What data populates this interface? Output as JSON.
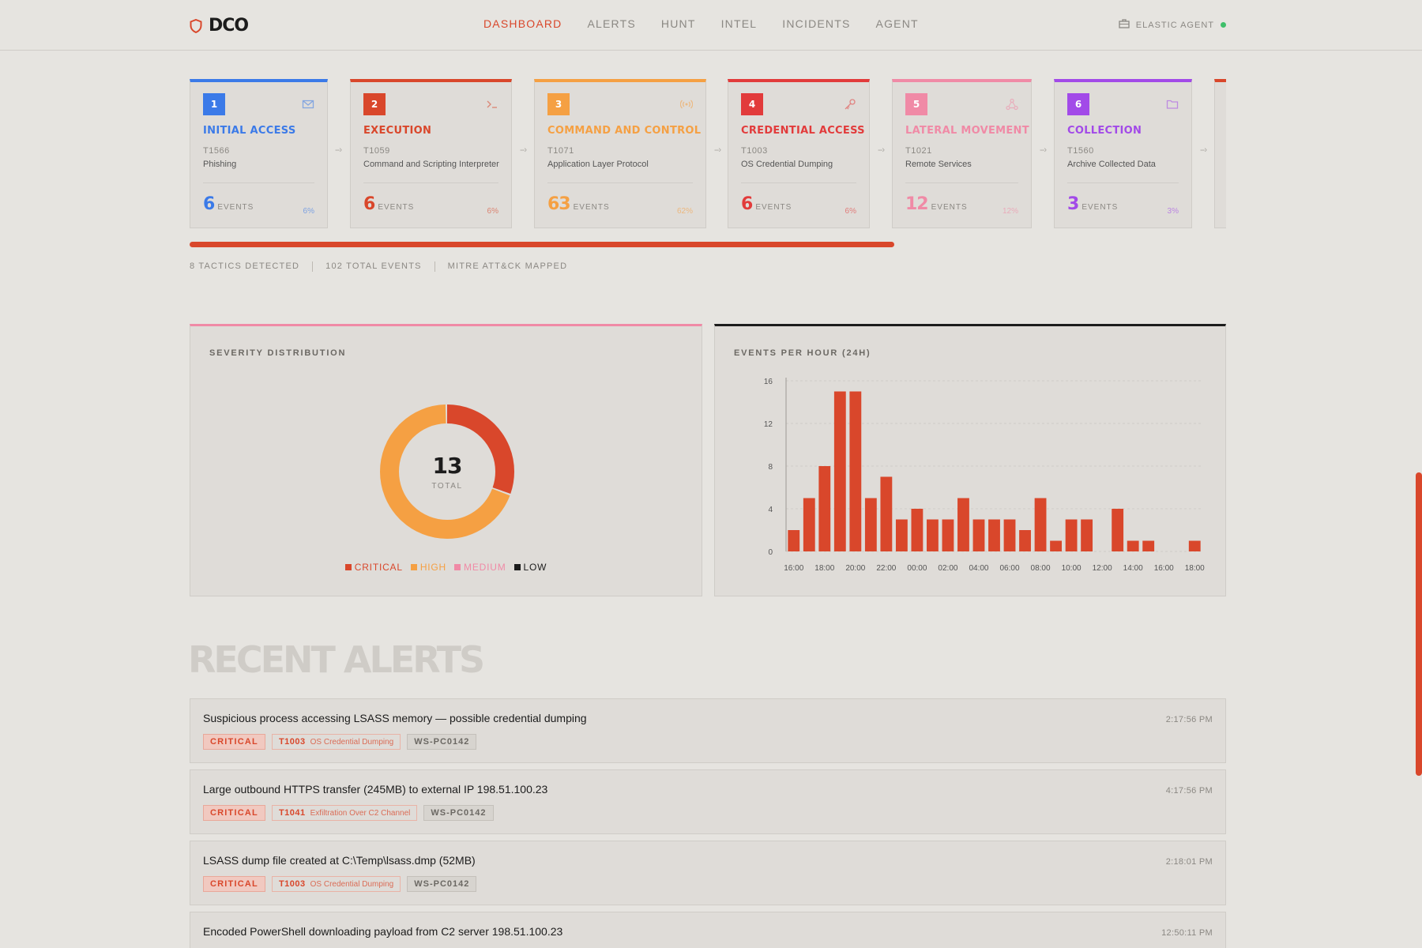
{
  "header": {
    "logo": "DCO",
    "nav": [
      {
        "label": "DASHBOARD",
        "active": true
      },
      {
        "label": "ALERTS",
        "active": false
      },
      {
        "label": "HUNT",
        "active": false
      },
      {
        "label": "INTEL",
        "active": false
      },
      {
        "label": "INCIDENTS",
        "active": false
      },
      {
        "label": "AGENT",
        "active": false
      }
    ],
    "agent_label": "ELASTIC AGENT",
    "agent_status_color": "#3fbf6a"
  },
  "colors": {
    "accent": "#d9472b",
    "critical": "#d9472b",
    "high": "#f5a043",
    "medium": "#f08aa6",
    "low": "#1c1c1c"
  },
  "tactics": [
    {
      "num": "1",
      "name": "INITIAL ACCESS",
      "tid": "T1566",
      "technique": "Phishing",
      "count": "6",
      "events_label": "EVENTS",
      "pct": "6%",
      "color": "#3b7ae8",
      "icon": "mail-icon"
    },
    {
      "num": "2",
      "name": "EXECUTION",
      "tid": "T1059",
      "technique": "Command and Scripting Interpreter",
      "count": "6",
      "events_label": "EVENTS",
      "pct": "6%",
      "color": "#d9472b",
      "icon": "terminal-icon"
    },
    {
      "num": "3",
      "name": "COMMAND AND CONTROL",
      "tid": "T1071",
      "technique": "Application Layer Protocol",
      "count": "63",
      "events_label": "EVENTS",
      "pct": "62%",
      "color": "#f5a043",
      "icon": "broadcast-icon"
    },
    {
      "num": "4",
      "name": "CREDENTIAL ACCESS",
      "tid": "T1003",
      "technique": "OS Credential Dumping",
      "count": "6",
      "events_label": "EVENTS",
      "pct": "6%",
      "color": "#e23b3b",
      "icon": "key-icon"
    },
    {
      "num": "5",
      "name": "LATERAL MOVEMENT",
      "tid": "T1021",
      "technique": "Remote Services",
      "count": "12",
      "events_label": "EVENTS",
      "pct": "12%",
      "color": "#f08aa6",
      "icon": "network-icon"
    },
    {
      "num": "6",
      "name": "COLLECTION",
      "tid": "T1560",
      "technique": "Archive Collected Data",
      "count": "3",
      "events_label": "EVENTS",
      "pct": "3%",
      "color": "#a24ae8",
      "icon": "folder-icon"
    }
  ],
  "tactics_progress": 0.68,
  "stats": [
    "8 TACTICS DETECTED",
    "102 TOTAL EVENTS",
    "MITRE ATT&CK MAPPED"
  ],
  "severity": {
    "title": "SEVERITY DISTRIBUTION",
    "total": "13",
    "total_label": "TOTAL",
    "legend": [
      {
        "label": "CRITICAL",
        "color": "#d9472b"
      },
      {
        "label": "HIGH",
        "color": "#f5a043"
      },
      {
        "label": "MEDIUM",
        "color": "#f08aa6"
      },
      {
        "label": "LOW",
        "color": "#1c1c1c"
      }
    ]
  },
  "events_per_hour": {
    "title": "EVENTS PER HOUR (24H)"
  },
  "chart_data": [
    {
      "type": "pie",
      "categories": [
        "CRITICAL",
        "HIGH",
        "MEDIUM",
        "LOW"
      ],
      "values": [
        4,
        9,
        0,
        0
      ],
      "colors": [
        "#d9472b",
        "#f5a043",
        "#f08aa6",
        "#1c1c1c"
      ]
    },
    {
      "type": "bar",
      "x": [
        "16:00",
        "17:00",
        "18:00",
        "19:00",
        "20:00",
        "21:00",
        "22:00",
        "23:00",
        "00:00",
        "01:00",
        "02:00",
        "03:00",
        "04:00",
        "05:00",
        "06:00",
        "07:00",
        "08:00",
        "09:00",
        "10:00",
        "11:00",
        "12:00",
        "13:00",
        "14:00",
        "15:00",
        "16:00",
        "17:00",
        "18:00"
      ],
      "tick_labels": [
        "16:00",
        "18:00",
        "20:00",
        "22:00",
        "00:00",
        "02:00",
        "04:00",
        "06:00",
        "08:00",
        "10:00",
        "12:00",
        "14:00",
        "16:00",
        "18:00"
      ],
      "values": [
        2,
        5,
        8,
        15,
        15,
        5,
        7,
        3,
        4,
        3,
        3,
        5,
        3,
        3,
        3,
        2,
        5,
        1,
        3,
        3,
        0,
        4,
        1,
        1,
        0,
        0,
        1
      ],
      "ylim": [
        0,
        16
      ],
      "yticks": [
        0,
        4,
        8,
        12,
        16
      ],
      "grid": true,
      "color": "#d9472b"
    }
  ],
  "recent_alerts_title": "RECENT ALERTS",
  "alerts": [
    {
      "title": "Suspicious process accessing LSASS memory — possible credential dumping",
      "time": "2:17:56 PM",
      "severity": "CRITICAL",
      "tech_code": "T1003",
      "tech_name": "OS Credential Dumping",
      "host": "WS-PC0142"
    },
    {
      "title": "Large outbound HTTPS transfer (245MB) to external IP 198.51.100.23",
      "time": "4:17:56 PM",
      "severity": "CRITICAL",
      "tech_code": "T1041",
      "tech_name": "Exfiltration Over C2 Channel",
      "host": "WS-PC0142"
    },
    {
      "title": "LSASS dump file created at C:\\Temp\\lsass.dmp (52MB)",
      "time": "2:18:01 PM",
      "severity": "CRITICAL",
      "tech_code": "T1003",
      "tech_name": "OS Credential Dumping",
      "host": "WS-PC0142"
    },
    {
      "title": "Encoded PowerShell downloading payload from C2 server 198.51.100.23",
      "time": "12:50:11 PM",
      "severity": "",
      "tech_code": "",
      "tech_name": "",
      "host": ""
    }
  ]
}
